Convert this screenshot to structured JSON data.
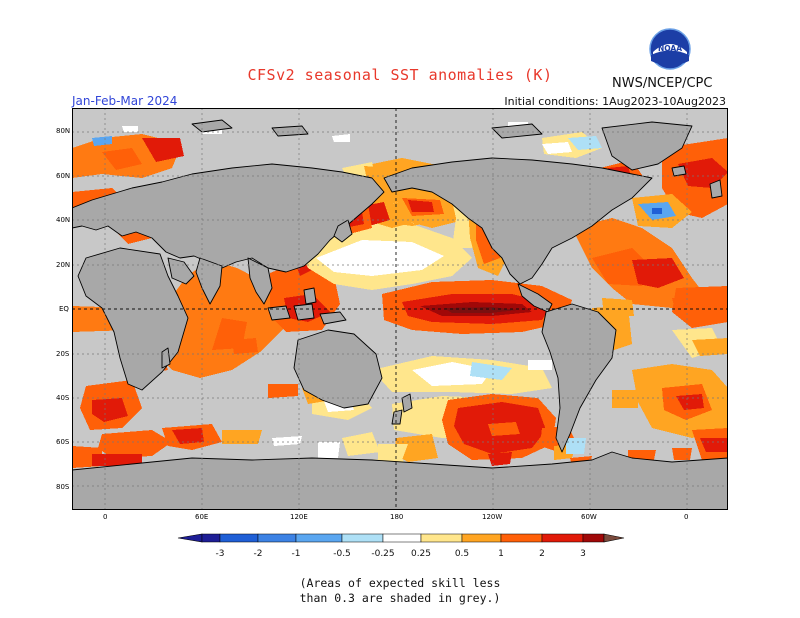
{
  "header": {
    "title": "CFSv2 seasonal SST anomalies (K)",
    "source": "NWS/NCEP/CPC",
    "period": "Jan-Feb-Mar 2024",
    "initial_conditions": "Initial conditions: 1Aug2023-10Aug2023",
    "logo_text": "NOAA"
  },
  "map": {
    "lat_labels": [
      "80N",
      "60N",
      "40N",
      "20N",
      "EQ",
      "20S",
      "40S",
      "60S",
      "80S"
    ],
    "lon_labels": [
      "0",
      "60E",
      "120E",
      "180",
      "120W",
      "60W",
      "0"
    ],
    "land_color": "#a8a8a8",
    "grey_skill_color": "#c8c8c8"
  },
  "legend": {
    "tick_labels": [
      "-3",
      "-2",
      "-1",
      "-0.5",
      "-0.25",
      "0.25",
      "0.5",
      "1",
      "2",
      "3"
    ],
    "colors": [
      "#1e1e96",
      "#1f5fd6",
      "#3c82e4",
      "#5aa6f0",
      "#aee0f6",
      "#ffffff",
      "#ffe68c",
      "#ffa522",
      "#ff6008",
      "#e11a08",
      "#a00808",
      "#7a4a3c"
    ],
    "note_line1": "(Areas of expected skill less",
    "note_line2": "than 0.3 are shaded in grey.)"
  }
}
